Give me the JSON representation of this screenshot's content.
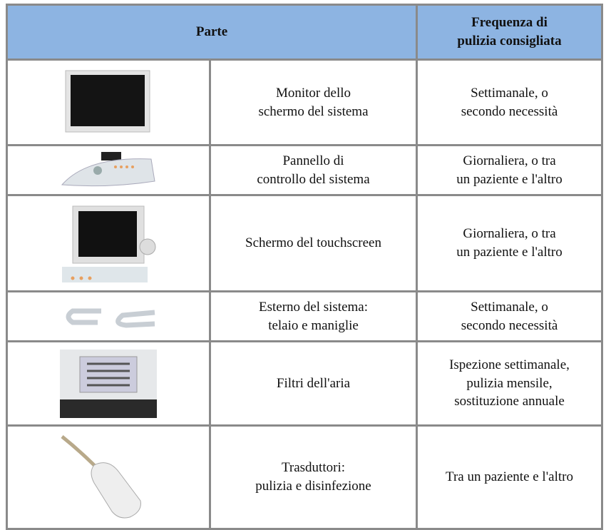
{
  "header": {
    "part": "Parte",
    "frequency": "Frequenza di\npulizia consigliata"
  },
  "rows": [
    {
      "part": "Monitor dello\nschermo del sistema",
      "frequency": "Settimanale, o\nsecondo necessità"
    },
    {
      "part": "Pannello di\ncontrollo del sistema",
      "frequency": "Giornaliera, o tra\nun paziente e l'altro"
    },
    {
      "part": "Schermo del touchscreen",
      "frequency": "Giornaliera, o tra\nun paziente e l'altro"
    },
    {
      "part": "Esterno del sistema:\ntelaio e maniglie",
      "frequency": "Settimanale, o\nsecondo necessità"
    },
    {
      "part": "Filtri dell'aria",
      "frequency": "Ispezione settimanale,\npulizia mensile,\nsostituzione annuale"
    },
    {
      "part": "Trasduttori:\npulizia e disinfezione",
      "frequency": "Tra un paziente e l'altro"
    }
  ]
}
